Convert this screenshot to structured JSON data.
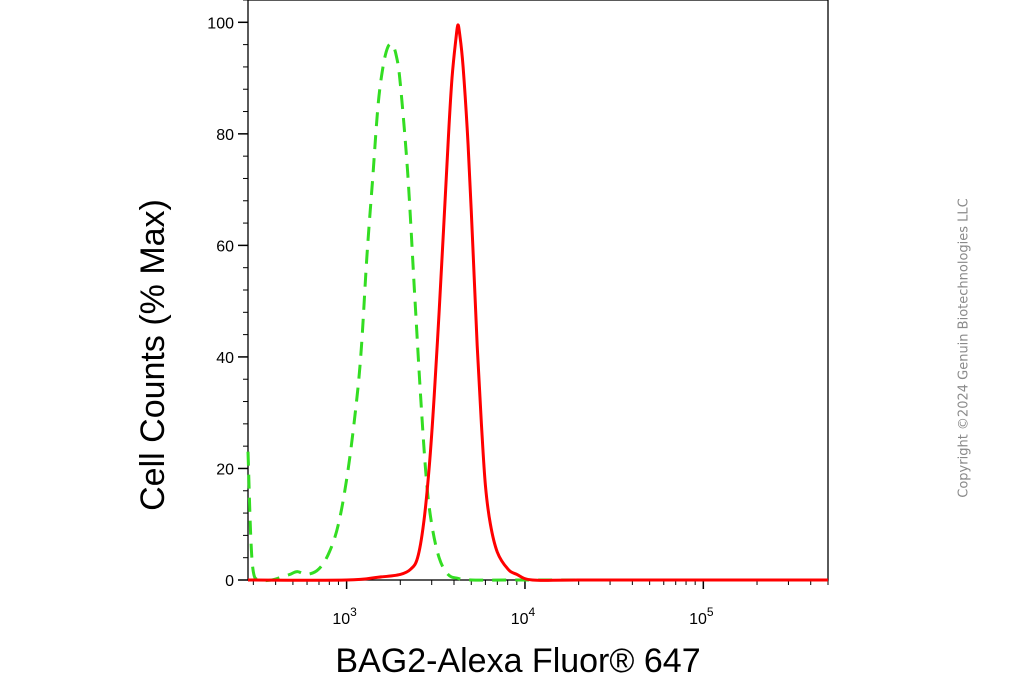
{
  "chart_data": {
    "type": "line",
    "xlabel": "BAG2-Alexa Fluor® 647",
    "ylabel": "Cell Counts (% Max)",
    "x_scale": "log",
    "xlim": [
      280,
      500000
    ],
    "ylim": [
      0,
      104
    ],
    "y_ticks": [
      0,
      20,
      40,
      60,
      80,
      100
    ],
    "y_tick_labels": [
      "0",
      "20",
      "40",
      "60",
      "80",
      "100"
    ],
    "x_major_ticks": [
      1000,
      10000,
      100000
    ],
    "x_tick_labels": [
      {
        "base": "10",
        "exp": "3"
      },
      {
        "base": "10",
        "exp": "4"
      },
      {
        "base": "10",
        "exp": "5"
      }
    ],
    "grid": false,
    "legend": "none",
    "series": [
      {
        "color": "#33dd22",
        "style": "dashed",
        "points": [
          [
            280,
            23
          ],
          [
            290,
            8
          ],
          [
            300,
            1.5
          ],
          [
            320,
            0
          ],
          [
            380,
            0
          ],
          [
            430,
            0.5
          ],
          [
            480,
            1
          ],
          [
            530,
            1.5
          ],
          [
            600,
            1
          ],
          [
            700,
            2
          ],
          [
            800,
            5
          ],
          [
            900,
            10
          ],
          [
            1000,
            18
          ],
          [
            1100,
            28
          ],
          [
            1200,
            40
          ],
          [
            1300,
            58
          ],
          [
            1400,
            72
          ],
          [
            1500,
            85
          ],
          [
            1600,
            92
          ],
          [
            1700,
            95.5
          ],
          [
            1800,
            96
          ],
          [
            1900,
            94
          ],
          [
            2000,
            89
          ],
          [
            2200,
            73
          ],
          [
            2400,
            52
          ],
          [
            2600,
            33
          ],
          [
            2800,
            18
          ],
          [
            3000,
            10
          ],
          [
            3300,
            4
          ],
          [
            3700,
            1
          ],
          [
            4200,
            0.3
          ],
          [
            5000,
            0
          ],
          [
            8000,
            0
          ],
          [
            20000,
            0
          ],
          [
            500000,
            0
          ]
        ]
      },
      {
        "color": "#ff0000",
        "style": "solid",
        "points": [
          [
            280,
            0
          ],
          [
            1000,
            0
          ],
          [
            1500,
            0.5
          ],
          [
            2000,
            1
          ],
          [
            2300,
            2
          ],
          [
            2500,
            4
          ],
          [
            2700,
            10
          ],
          [
            2900,
            20
          ],
          [
            3100,
            33
          ],
          [
            3300,
            48
          ],
          [
            3500,
            63
          ],
          [
            3700,
            78
          ],
          [
            3900,
            90
          ],
          [
            4100,
            97
          ],
          [
            4200,
            99.5
          ],
          [
            4300,
            98
          ],
          [
            4500,
            92
          ],
          [
            4800,
            78
          ],
          [
            5100,
            60
          ],
          [
            5400,
            42
          ],
          [
            5700,
            28
          ],
          [
            6000,
            17
          ],
          [
            6400,
            10
          ],
          [
            7000,
            5
          ],
          [
            8000,
            2
          ],
          [
            9000,
            1
          ],
          [
            11000,
            0
          ],
          [
            20000,
            0
          ],
          [
            100000,
            0
          ],
          [
            500000,
            0
          ]
        ]
      }
    ]
  },
  "copyright": "Copyright ©2024 Genuin Biotechnologies LLC"
}
